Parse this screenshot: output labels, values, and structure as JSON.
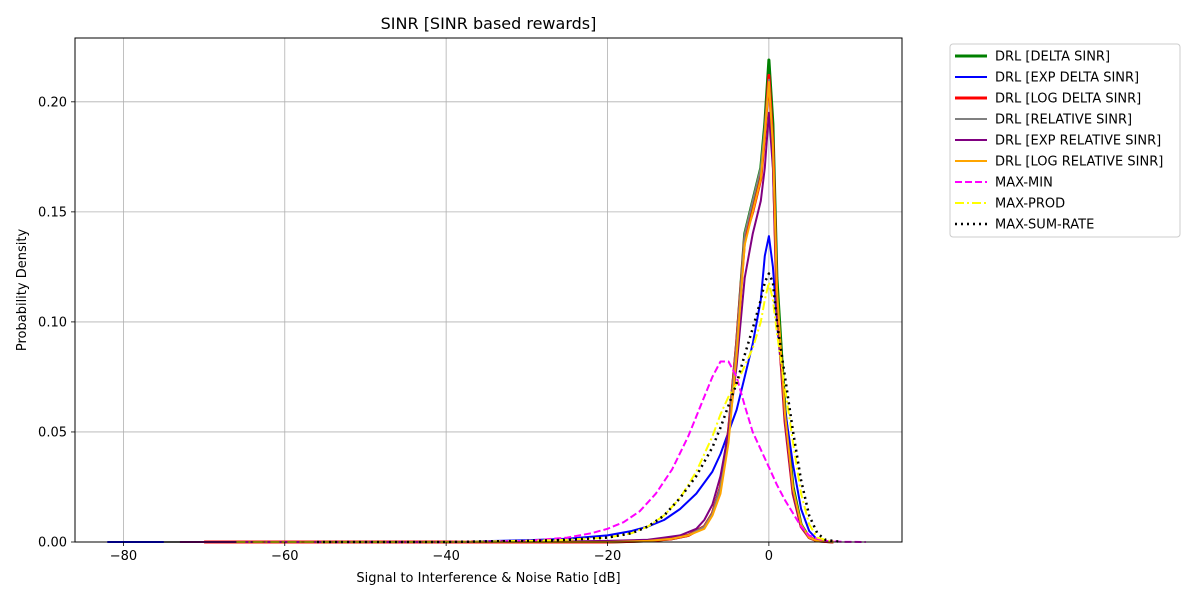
{
  "chart_data": {
    "type": "line",
    "title": "SINR [SINR based rewards]",
    "xlabel": "Signal to Interference & Noise Ratio [dB]",
    "ylabel": "Probability Density",
    "xlim": [
      -86,
      16.5
    ],
    "ylim": [
      0,
      0.229
    ],
    "xticks": [
      -80,
      -60,
      -40,
      -20,
      0
    ],
    "xtick_labels": [
      "−80",
      "−60",
      "−40",
      "−20",
      "0"
    ],
    "yticks": [
      0.0,
      0.05,
      0.1,
      0.15,
      0.2
    ],
    "ytick_labels": [
      "0.00",
      "0.05",
      "0.10",
      "0.15",
      "0.20"
    ],
    "grid": true,
    "legend_position": "outside-top-right",
    "series": [
      {
        "name": "DRL [DELTA SINR]",
        "color": "#008000",
        "style": "solid",
        "width": 3,
        "x": [
          -63,
          -20,
          -15,
          -12,
          -10,
          -8,
          -7,
          -6,
          -5,
          -4,
          -3,
          -2,
          -1,
          -0.5,
          0,
          0.5,
          1,
          2,
          3,
          4,
          5,
          6,
          8
        ],
        "y": [
          0,
          0,
          0.0005,
          0.0015,
          0.003,
          0.007,
          0.013,
          0.025,
          0.05,
          0.09,
          0.14,
          0.155,
          0.17,
          0.19,
          0.219,
          0.19,
          0.12,
          0.06,
          0.025,
          0.008,
          0.002,
          0.0005,
          0
        ]
      },
      {
        "name": "DRL [EXP DELTA SINR]",
        "color": "#0000ff",
        "style": "solid",
        "width": 2,
        "x": [
          -82,
          -40,
          -30,
          -25,
          -20,
          -17,
          -15,
          -13,
          -11,
          -9,
          -7,
          -6,
          -5,
          -4,
          -3,
          -2,
          -1,
          -0.5,
          0,
          0.5,
          1,
          2,
          3,
          4,
          5,
          6,
          8
        ],
        "y": [
          0,
          0,
          0.0008,
          0.0015,
          0.003,
          0.005,
          0.007,
          0.01,
          0.015,
          0.022,
          0.032,
          0.04,
          0.05,
          0.06,
          0.075,
          0.09,
          0.11,
          0.13,
          0.139,
          0.125,
          0.1,
          0.06,
          0.035,
          0.015,
          0.005,
          0.001,
          0
        ]
      },
      {
        "name": "DRL [LOG DELTA SINR]",
        "color": "#ff0000",
        "style": "solid",
        "width": 3,
        "x": [
          -70,
          -20,
          -15,
          -12,
          -10,
          -8,
          -7,
          -6,
          -5,
          -4,
          -3,
          -2,
          -1,
          -0.5,
          0,
          0.5,
          1,
          2,
          3,
          4,
          5,
          6,
          8
        ],
        "y": [
          0,
          0,
          0.0005,
          0.0015,
          0.003,
          0.007,
          0.013,
          0.025,
          0.05,
          0.09,
          0.138,
          0.15,
          0.165,
          0.185,
          0.212,
          0.18,
          0.11,
          0.055,
          0.022,
          0.007,
          0.002,
          0.0005,
          0
        ]
      },
      {
        "name": "DRL [RELATIVE SINR]",
        "color": "#808080",
        "style": "solid",
        "width": 2,
        "x": [
          -75,
          -20,
          -15,
          -12,
          -10,
          -8,
          -7,
          -6,
          -5,
          -4,
          -3,
          -2,
          -1,
          -0.5,
          0,
          0.5,
          1,
          2,
          3,
          4,
          5,
          6,
          8
        ],
        "y": [
          0,
          0,
          0.0005,
          0.0015,
          0.003,
          0.007,
          0.013,
          0.025,
          0.05,
          0.09,
          0.14,
          0.155,
          0.17,
          0.188,
          0.21,
          0.18,
          0.11,
          0.055,
          0.022,
          0.007,
          0.002,
          0.0005,
          0
        ]
      },
      {
        "name": "DRL [EXP RELATIVE SINR]",
        "color": "#800080",
        "style": "solid",
        "width": 2,
        "x": [
          -73,
          -30,
          -20,
          -15,
          -13,
          -11,
          -9,
          -8,
          -7,
          -6,
          -5,
          -4,
          -3,
          -2,
          -1,
          -0.5,
          0,
          0.5,
          1,
          2,
          3,
          4,
          5,
          6,
          8
        ],
        "y": [
          0,
          0,
          0.0005,
          0.001,
          0.002,
          0.003,
          0.006,
          0.01,
          0.017,
          0.03,
          0.05,
          0.08,
          0.12,
          0.14,
          0.155,
          0.17,
          0.195,
          0.17,
          0.11,
          0.055,
          0.022,
          0.007,
          0.002,
          0.0005,
          0
        ]
      },
      {
        "name": "DRL [LOG RELATIVE SINR]",
        "color": "#ffa500",
        "style": "solid",
        "width": 2,
        "x": [
          -64,
          -20,
          -15,
          -12,
          -10,
          -8,
          -7,
          -6,
          -5,
          -4,
          -3,
          -2,
          -1,
          -0.5,
          0,
          0.5,
          1,
          2,
          3,
          4,
          5,
          6,
          8
        ],
        "y": [
          0,
          0,
          0.0005,
          0.0015,
          0.003,
          0.006,
          0.012,
          0.022,
          0.045,
          0.085,
          0.135,
          0.15,
          0.165,
          0.185,
          0.209,
          0.18,
          0.115,
          0.058,
          0.024,
          0.008,
          0.002,
          0.0005,
          0
        ]
      },
      {
        "name": "MAX-MIN",
        "color": "#ff00ff",
        "style": "dashed",
        "width": 2,
        "x": [
          -65,
          -40,
          -30,
          -25,
          -22,
          -20,
          -18,
          -16,
          -14,
          -12,
          -10,
          -8,
          -7,
          -6,
          -5,
          -4,
          -3,
          -2,
          -1,
          0,
          1,
          2,
          3,
          4,
          5,
          6,
          7,
          9,
          12
        ],
        "y": [
          0,
          0,
          0.0005,
          0.002,
          0.004,
          0.006,
          0.009,
          0.014,
          0.022,
          0.033,
          0.048,
          0.066,
          0.075,
          0.082,
          0.082,
          0.075,
          0.062,
          0.05,
          0.042,
          0.034,
          0.026,
          0.019,
          0.013,
          0.007,
          0.003,
          0.0015,
          0.0005,
          0.0001,
          0
        ]
      },
      {
        "name": "MAX-PROD",
        "color": "#ffff00",
        "style": "dashdot",
        "width": 2,
        "x": [
          -66,
          -40,
          -30,
          -25,
          -20,
          -17,
          -15,
          -13,
          -11,
          -9,
          -7,
          -6,
          -5,
          -4,
          -3,
          -2,
          -1,
          -0.5,
          0,
          0.5,
          1,
          2,
          3,
          4,
          5,
          6,
          8
        ],
        "y": [
          0,
          0,
          0.0005,
          0.001,
          0.002,
          0.004,
          0.007,
          0.012,
          0.02,
          0.032,
          0.048,
          0.058,
          0.066,
          0.072,
          0.08,
          0.088,
          0.1,
          0.11,
          0.118,
          0.11,
          0.095,
          0.07,
          0.045,
          0.022,
          0.008,
          0.002,
          0
        ]
      },
      {
        "name": "MAX-SUM-RATE",
        "color": "#000000",
        "style": "dotted",
        "width": 2.5,
        "x": [
          -56,
          -40,
          -30,
          -25,
          -20,
          -17,
          -15,
          -13,
          -11,
          -9,
          -7,
          -6,
          -5,
          -4,
          -3,
          -2,
          -1,
          -0.5,
          0,
          0.5,
          1,
          2,
          3,
          4,
          5,
          6,
          7,
          9
        ],
        "y": [
          0,
          0,
          0.0005,
          0.001,
          0.002,
          0.004,
          0.007,
          0.012,
          0.02,
          0.03,
          0.043,
          0.052,
          0.062,
          0.072,
          0.085,
          0.097,
          0.11,
          0.118,
          0.122,
          0.118,
          0.1,
          0.075,
          0.05,
          0.028,
          0.012,
          0.004,
          0.001,
          0
        ]
      }
    ]
  }
}
